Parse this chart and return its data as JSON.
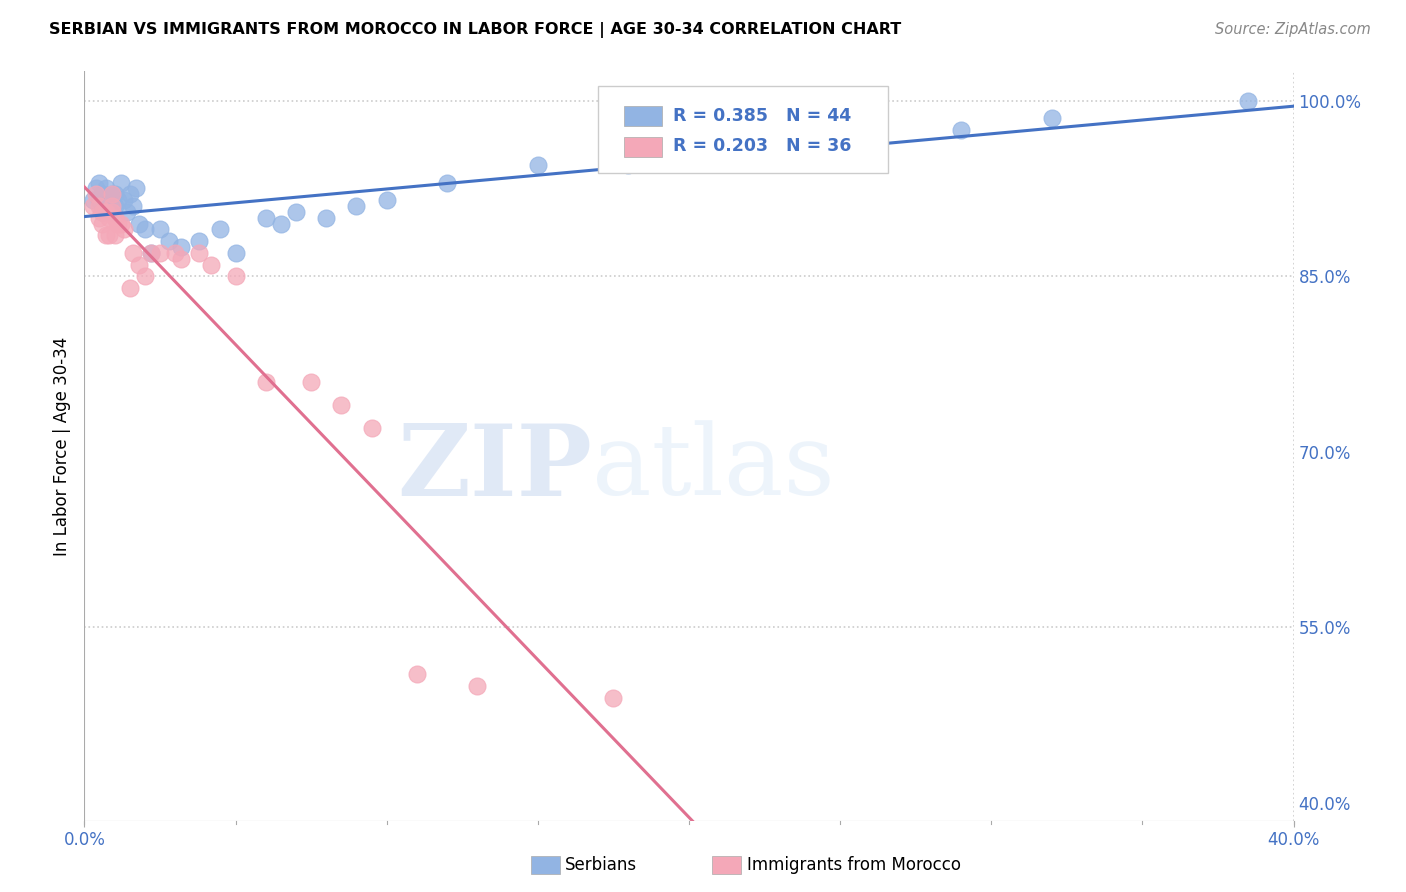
{
  "title": "SERBIAN VS IMMIGRANTS FROM MOROCCO IN LABOR FORCE | AGE 30-34 CORRELATION CHART",
  "source": "Source: ZipAtlas.com",
  "ylabel": "In Labor Force | Age 30-34",
  "y_ticks": [
    0.4,
    0.55,
    0.7,
    0.85,
    1.0
  ],
  "y_tick_labels": [
    "40.0%",
    "55.0%",
    "70.0%",
    "85.0%",
    "100.0%"
  ],
  "x_lim": [
    0.0,
    0.4
  ],
  "y_lim": [
    0.385,
    1.025
  ],
  "R_serbian": 0.385,
  "N_serbian": 44,
  "R_morocco": 0.203,
  "N_morocco": 36,
  "color_serbian": "#92b4e3",
  "color_morocco": "#f4a8b8",
  "color_trendline_serbian": "#4472c4",
  "color_trendline_morocco": "#e07090",
  "legend_label_serbian": "Serbians",
  "legend_label_morocco": "Immigrants from Morocco",
  "watermark_zip": "ZIP",
  "watermark_atlas": "atlas",
  "serbian_x": [
    0.003,
    0.004,
    0.005,
    0.005,
    0.006,
    0.006,
    0.007,
    0.007,
    0.008,
    0.008,
    0.009,
    0.009,
    0.01,
    0.01,
    0.011,
    0.012,
    0.013,
    0.014,
    0.015,
    0.016,
    0.017,
    0.018,
    0.02,
    0.022,
    0.025,
    0.028,
    0.032,
    0.038,
    0.045,
    0.05,
    0.06,
    0.065,
    0.07,
    0.08,
    0.09,
    0.1,
    0.12,
    0.15,
    0.18,
    0.22,
    0.25,
    0.29,
    0.32,
    0.385
  ],
  "serbian_y": [
    0.915,
    0.925,
    0.93,
    0.915,
    0.92,
    0.905,
    0.925,
    0.91,
    0.915,
    0.91,
    0.92,
    0.905,
    0.92,
    0.91,
    0.915,
    0.93,
    0.915,
    0.905,
    0.92,
    0.91,
    0.925,
    0.895,
    0.89,
    0.87,
    0.89,
    0.88,
    0.875,
    0.88,
    0.89,
    0.87,
    0.9,
    0.895,
    0.905,
    0.9,
    0.91,
    0.915,
    0.93,
    0.945,
    0.945,
    0.96,
    0.965,
    0.975,
    0.985,
    1.0
  ],
  "morocco_x": [
    0.003,
    0.004,
    0.005,
    0.005,
    0.006,
    0.006,
    0.007,
    0.007,
    0.008,
    0.008,
    0.009,
    0.009,
    0.009,
    0.01,
    0.01,
    0.011,
    0.012,
    0.013,
    0.015,
    0.016,
    0.018,
    0.02,
    0.022,
    0.025,
    0.03,
    0.032,
    0.038,
    0.042,
    0.05,
    0.06,
    0.075,
    0.085,
    0.095,
    0.11,
    0.13,
    0.175
  ],
  "morocco_y": [
    0.91,
    0.92,
    0.9,
    0.91,
    0.895,
    0.905,
    0.905,
    0.885,
    0.9,
    0.885,
    0.92,
    0.905,
    0.91,
    0.9,
    0.885,
    0.895,
    0.895,
    0.89,
    0.84,
    0.87,
    0.86,
    0.85,
    0.87,
    0.87,
    0.87,
    0.865,
    0.87,
    0.86,
    0.85,
    0.76,
    0.76,
    0.74,
    0.72,
    0.51,
    0.5,
    0.49
  ]
}
